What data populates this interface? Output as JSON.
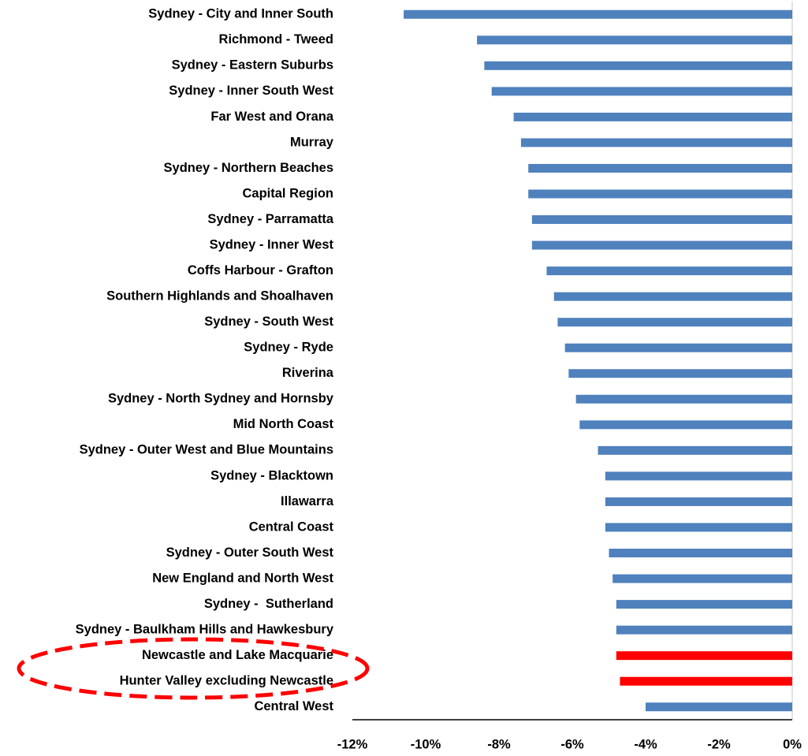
{
  "chart_data": {
    "type": "bar",
    "orientation": "horizontal",
    "categories": [
      "Sydney - City and Inner South",
      "Richmond - Tweed",
      "Sydney - Eastern Suburbs",
      "Sydney - Inner South West",
      "Far West and Orana",
      "Murray",
      "Sydney - Northern Beaches",
      "Capital Region",
      "Sydney - Parramatta",
      "Sydney - Inner West",
      "Coffs Harbour - Grafton",
      "Southern Highlands and Shoalhaven",
      "Sydney - South West",
      "Sydney - Ryde",
      "Riverina",
      "Sydney - North Sydney and Hornsby",
      "Mid North Coast",
      "Sydney - Outer West and Blue Mountains",
      "Sydney - Blacktown",
      "Illawarra",
      "Central Coast",
      "Sydney - Outer South West",
      "New England and North West",
      "Sydney -  Sutherland",
      "Sydney - Baulkham Hills and Hawkesbury",
      "Newcastle and Lake Macquarie",
      "Hunter Valley excluding Newcastle",
      "Central West"
    ],
    "values": [
      -10.6,
      -8.6,
      -8.4,
      -8.2,
      -7.6,
      -7.4,
      -7.2,
      -7.2,
      -7.1,
      -7.1,
      -6.7,
      -6.5,
      -6.4,
      -6.2,
      -6.1,
      -5.9,
      -5.8,
      -5.3,
      -5.1,
      -5.1,
      -5.1,
      -5.0,
      -4.9,
      -4.8,
      -4.8,
      -4.8,
      -4.7,
      -4.0
    ],
    "colors": [
      "#4f81bd",
      "#4f81bd",
      "#4f81bd",
      "#4f81bd",
      "#4f81bd",
      "#4f81bd",
      "#4f81bd",
      "#4f81bd",
      "#4f81bd",
      "#4f81bd",
      "#4f81bd",
      "#4f81bd",
      "#4f81bd",
      "#4f81bd",
      "#4f81bd",
      "#4f81bd",
      "#4f81bd",
      "#4f81bd",
      "#4f81bd",
      "#4f81bd",
      "#4f81bd",
      "#4f81bd",
      "#4f81bd",
      "#4f81bd",
      "#4f81bd",
      "#ff0000",
      "#ff0000",
      "#4f81bd"
    ],
    "xlim": [
      -12,
      0
    ],
    "xticks": [
      {
        "value": -12,
        "label": "-12%"
      },
      {
        "value": -10,
        "label": "-10%"
      },
      {
        "value": -8,
        "label": "-8%"
      },
      {
        "value": -6,
        "label": "-6%"
      },
      {
        "value": -4,
        "label": "-4%"
      },
      {
        "value": -2,
        "label": "-2%"
      },
      {
        "value": 0,
        "label": "0%"
      }
    ],
    "grid": false
  }
}
